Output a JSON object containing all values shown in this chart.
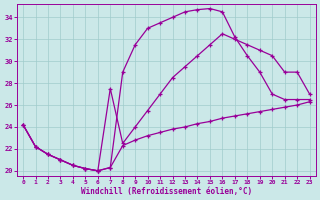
{
  "xlabel": "Windchill (Refroidissement éolien,°C)",
  "bg_color": "#cbe8e8",
  "grid_color": "#a0cccc",
  "line_color": "#990099",
  "xlim": [
    -0.5,
    23.5
  ],
  "ylim": [
    19.5,
    35.2
  ],
  "yticks": [
    20,
    22,
    24,
    26,
    28,
    30,
    32,
    34
  ],
  "xticks": [
    0,
    1,
    2,
    3,
    4,
    5,
    6,
    7,
    8,
    9,
    10,
    11,
    12,
    13,
    14,
    15,
    16,
    17,
    18,
    19,
    20,
    21,
    22,
    23
  ],
  "lines": [
    {
      "x": [
        0,
        1,
        2,
        3,
        4,
        5,
        6,
        7,
        8,
        9,
        10,
        11,
        12,
        13,
        14,
        15,
        16,
        17,
        18,
        19,
        20,
        21,
        22,
        23
      ],
      "y": [
        24.2,
        22.2,
        21.5,
        21.0,
        20.5,
        20.2,
        20.0,
        20.3,
        29.0,
        31.5,
        33.0,
        33.5,
        34.0,
        34.5,
        34.7,
        34.8,
        34.5,
        32.2,
        30.5,
        29.0,
        27.0,
        26.5,
        26.5,
        26.5
      ]
    },
    {
      "x": [
        0,
        1,
        2,
        3,
        4,
        5,
        6,
        7,
        8,
        9,
        10,
        11,
        12,
        13,
        14,
        15,
        16,
        17,
        18,
        19,
        20,
        21,
        22,
        23
      ],
      "y": [
        24.2,
        22.2,
        21.5,
        21.0,
        20.5,
        20.2,
        20.0,
        27.5,
        22.5,
        24.0,
        25.5,
        27.0,
        28.5,
        29.5,
        30.5,
        31.5,
        32.5,
        32.0,
        31.5,
        31.0,
        30.5,
        29.0,
        29.0,
        27.0
      ]
    },
    {
      "x": [
        0,
        1,
        2,
        3,
        4,
        5,
        6,
        7,
        8,
        9,
        10,
        11,
        12,
        13,
        14,
        15,
        16,
        17,
        18,
        19,
        20,
        21,
        22,
        23
      ],
      "y": [
        24.2,
        22.2,
        21.5,
        21.0,
        20.5,
        20.2,
        20.0,
        20.3,
        22.3,
        22.8,
        23.2,
        23.5,
        23.8,
        24.0,
        24.3,
        24.5,
        24.8,
        25.0,
        25.2,
        25.4,
        25.6,
        25.8,
        26.0,
        26.3
      ]
    }
  ]
}
